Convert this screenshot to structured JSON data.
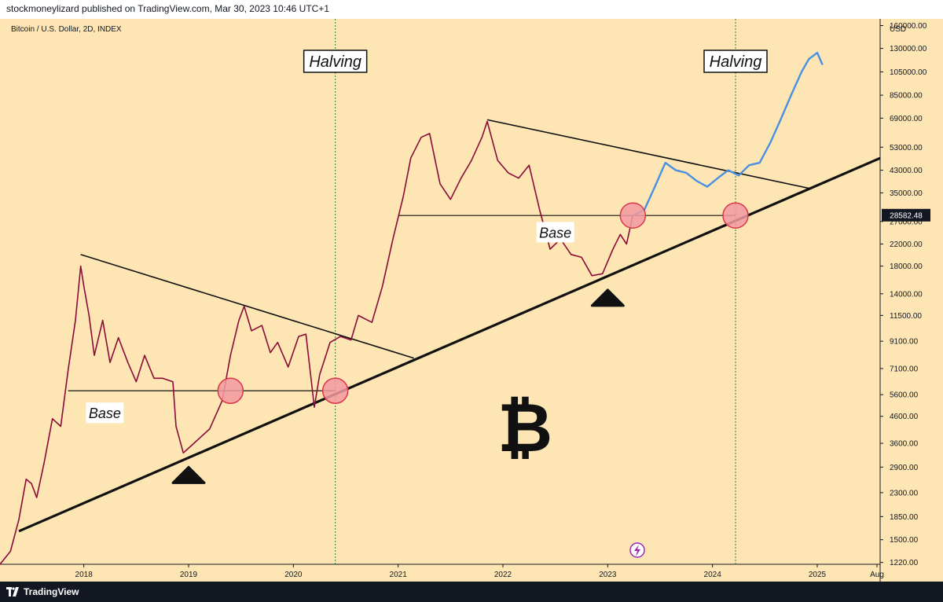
{
  "header": {
    "publisher_text": "stockmoneylizard published on TradingView.com, Mar 30, 2023 10:46 UTC+1"
  },
  "footer": {
    "brand": "TradingView"
  },
  "colors": {
    "background": "#fde5b4",
    "price": "#8b0a3a",
    "projection": "#4a90e2",
    "circle_fill": "#f29aa0",
    "circle_stroke": "#d9364a",
    "text": "#131722",
    "price_label_bg": "#131722"
  },
  "chart_data": {
    "type": "line",
    "title": "Bitcoin / U.S. Dollar, 2D, INDEX",
    "scale": "log",
    "currency_label": "USD",
    "current_price_label": "28582.48",
    "x_ticks": [
      "2018",
      "2019",
      "2020",
      "2021",
      "2022",
      "2023",
      "2024",
      "2025",
      "Aug"
    ],
    "y_ticks": [
      "160000.00",
      "130000.00",
      "105000.00",
      "85000.00",
      "69000.00",
      "53000.00",
      "43000.00",
      "35000.00",
      "27000.00",
      "22000.00",
      "18000.00",
      "14000.00",
      "11500.00",
      "9100.00",
      "7100.00",
      "5600.00",
      "4600.00",
      "3600.00",
      "2900.00",
      "2300.00",
      "1850.00",
      "1500.00",
      "1220.00"
    ],
    "ylim": [
      1200,
      170000
    ],
    "xlim": [
      2017.2,
      2025.6
    ],
    "series": [
      {
        "name": "",
        "points": [
          [
            2017.2,
            1200
          ],
          [
            2017.3,
            1350
          ],
          [
            2017.38,
            1800
          ],
          [
            2017.45,
            2600
          ],
          [
            2017.5,
            2500
          ],
          [
            2017.55,
            2200
          ],
          [
            2017.62,
            3000
          ],
          [
            2017.7,
            4500
          ],
          [
            2017.78,
            4200
          ],
          [
            2017.85,
            7000
          ],
          [
            2017.92,
            11000
          ],
          [
            2017.97,
            18000
          ],
          [
            2018.0,
            15000
          ],
          [
            2018.05,
            11500
          ],
          [
            2018.1,
            8000
          ],
          [
            2018.18,
            11000
          ],
          [
            2018.25,
            7500
          ],
          [
            2018.33,
            9400
          ],
          [
            2018.42,
            7500
          ],
          [
            2018.5,
            6300
          ],
          [
            2018.58,
            8000
          ],
          [
            2018.67,
            6500
          ],
          [
            2018.75,
            6500
          ],
          [
            2018.85,
            6300
          ],
          [
            2018.88,
            4200
          ],
          [
            2018.95,
            3300
          ],
          [
            2019.05,
            3600
          ],
          [
            2019.2,
            4100
          ],
          [
            2019.32,
            5300
          ],
          [
            2019.4,
            8000
          ],
          [
            2019.48,
            11000
          ],
          [
            2019.53,
            12500
          ],
          [
            2019.6,
            10000
          ],
          [
            2019.7,
            10500
          ],
          [
            2019.78,
            8200
          ],
          [
            2019.85,
            9000
          ],
          [
            2019.95,
            7200
          ],
          [
            2020.05,
            9500
          ],
          [
            2020.12,
            9700
          ],
          [
            2020.2,
            5000
          ],
          [
            2020.25,
            6700
          ],
          [
            2020.35,
            9000
          ],
          [
            2020.45,
            9500
          ],
          [
            2020.55,
            9200
          ],
          [
            2020.62,
            11500
          ],
          [
            2020.75,
            10800
          ],
          [
            2020.85,
            15000
          ],
          [
            2020.95,
            23000
          ],
          [
            2021.05,
            34000
          ],
          [
            2021.12,
            48000
          ],
          [
            2021.22,
            58000
          ],
          [
            2021.3,
            60000
          ],
          [
            2021.4,
            38000
          ],
          [
            2021.5,
            33000
          ],
          [
            2021.6,
            40000
          ],
          [
            2021.7,
            47000
          ],
          [
            2021.8,
            58000
          ],
          [
            2021.85,
            67000
          ],
          [
            2021.95,
            47000
          ],
          [
            2022.05,
            42000
          ],
          [
            2022.15,
            40000
          ],
          [
            2022.25,
            45000
          ],
          [
            2022.35,
            30000
          ],
          [
            2022.45,
            21000
          ],
          [
            2022.55,
            23000
          ],
          [
            2022.65,
            20000
          ],
          [
            2022.75,
            19500
          ],
          [
            2022.85,
            16500
          ],
          [
            2022.95,
            16800
          ],
          [
            2023.05,
            21000
          ],
          [
            2023.12,
            24000
          ],
          [
            2023.18,
            22000
          ],
          [
            2023.24,
            28500
          ]
        ]
      },
      {
        "name": "",
        "points": [
          [
            2023.24,
            28500
          ],
          [
            2023.35,
            30000
          ],
          [
            2023.45,
            37000
          ],
          [
            2023.55,
            46000
          ],
          [
            2023.65,
            43000
          ],
          [
            2023.75,
            42000
          ],
          [
            2023.85,
            39000
          ],
          [
            2023.95,
            37000
          ],
          [
            2024.05,
            40000
          ],
          [
            2024.15,
            43000
          ],
          [
            2024.25,
            41000
          ],
          [
            2024.35,
            45000
          ],
          [
            2024.45,
            46000
          ],
          [
            2024.55,
            55000
          ],
          [
            2024.65,
            68000
          ],
          [
            2024.75,
            85000
          ],
          [
            2024.85,
            105000
          ],
          [
            2024.92,
            118000
          ],
          [
            2025.0,
            125000
          ],
          [
            2025.05,
            112000
          ]
        ]
      }
    ],
    "annotations": [
      {
        "kind": "vline",
        "x": 2020.4,
        "label": "Halving"
      },
      {
        "kind": "vline",
        "x": 2024.22,
        "label": "Halving"
      },
      {
        "kind": "label",
        "text": "Base",
        "x": 2018.2,
        "y": 4750
      },
      {
        "kind": "label",
        "text": "Base",
        "x": 2022.5,
        "y": 24500
      },
      {
        "kind": "hline",
        "x1": 2017.85,
        "x2": 2020.4,
        "y": 5800
      },
      {
        "kind": "hline",
        "x1": 2021.0,
        "x2": 2024.22,
        "y": 28500
      },
      {
        "kind": "trendline",
        "x1": 2017.38,
        "y1": 1620,
        "x2": 2025.6,
        "y2": 48000,
        "weight": "heavy"
      },
      {
        "kind": "trendline",
        "x1": 2017.97,
        "y1": 20000,
        "x2": 2021.15,
        "y2": 7800,
        "weight": "normal"
      },
      {
        "kind": "trendline",
        "x1": 2021.85,
        "y1": 68000,
        "x2": 2024.92,
        "y2": 36500,
        "weight": "normal"
      },
      {
        "kind": "circle",
        "x": 2019.4,
        "y": 5800
      },
      {
        "kind": "circle",
        "x": 2020.4,
        "y": 5800
      },
      {
        "kind": "circle",
        "x": 2023.24,
        "y": 28500
      },
      {
        "kind": "circle",
        "x": 2024.22,
        "y": 28500
      },
      {
        "kind": "triangle",
        "x": 2019.0,
        "y": 2700
      },
      {
        "kind": "triangle",
        "x": 2023.0,
        "y": 13500
      }
    ],
    "grid": false,
    "legend": "none"
  }
}
